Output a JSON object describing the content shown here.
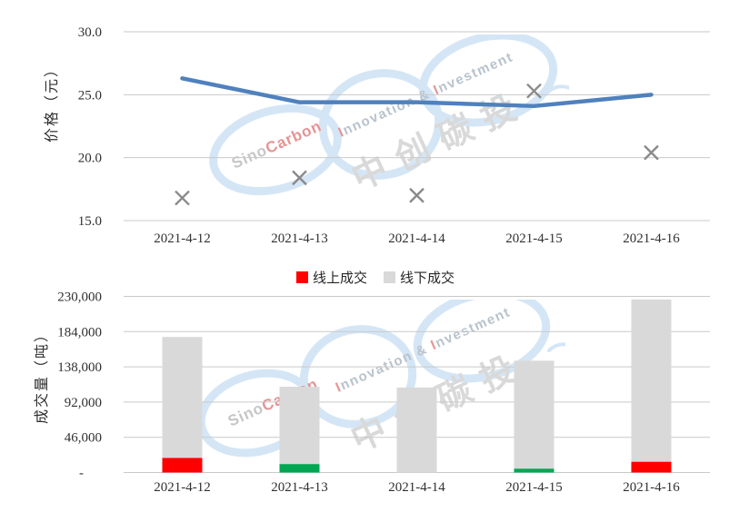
{
  "page": {
    "background": "#ffffff"
  },
  "legend": {
    "items": [
      {
        "label": "线上成交",
        "color": "#ff0000"
      },
      {
        "label": "线下成交",
        "color": "#d9d9d9"
      }
    ]
  },
  "watermark": {
    "sino": "Sino",
    "carbon": "Carbon",
    "tag_i1": "I",
    "tag_rest1": "nnovation ",
    "tag_amp": "& ",
    "tag_i2": "I",
    "tag_rest2": "nvestment",
    "cjk": "中创碳投",
    "ring_color": "#d4e6f6",
    "gray": "#c6c6c6",
    "gray2": "#b9c3cc",
    "red": "#e59494",
    "cjk_color": "#d9d9d9"
  },
  "chart_data": [
    {
      "type": "line",
      "title": "",
      "xlabel": "",
      "ylabel": "价格（元）",
      "grid": true,
      "categories": [
        "2021-4-12",
        "2021-4-13",
        "2021-4-14",
        "2021-4-15",
        "2021-4-16"
      ],
      "ylim": [
        15.0,
        30.0
      ],
      "yticks": [
        15.0,
        20.0,
        25.0,
        30.0
      ],
      "ytick_labels": [
        "15.0",
        "20.0",
        "25.0",
        "30.0"
      ],
      "series": [
        {
          "name": "price-line",
          "type": "line",
          "color": "#4f81bd",
          "stroke_width": 4.5,
          "values": [
            26.3,
            24.4,
            24.4,
            24.1,
            25.0
          ]
        },
        {
          "name": "price-x-markers",
          "type": "scatter",
          "marker": "x",
          "color": "#8a8a8a",
          "values": [
            16.8,
            18.4,
            17.0,
            25.3,
            20.4
          ]
        }
      ]
    },
    {
      "type": "bar",
      "stacked": true,
      "title": "",
      "xlabel": "",
      "ylabel": "成交量（吨）",
      "grid": true,
      "legend_position": "top",
      "categories": [
        "2021-4-12",
        "2021-4-13",
        "2021-4-14",
        "2021-4-15",
        "2021-4-16"
      ],
      "ylim": [
        0,
        230000
      ],
      "yticks": [
        0,
        46000,
        92000,
        138000,
        184000,
        230000
      ],
      "ytick_labels": [
        "-",
        "46,000",
        "92,000",
        "138,000",
        "184,000",
        "230,000"
      ],
      "series": [
        {
          "name": "线上成交",
          "values": [
            19000,
            11000,
            0,
            5000,
            14000
          ],
          "colors": [
            "#ff0000",
            "#00a651",
            "#00a651",
            "#00a651",
            "#ff0000"
          ],
          "legend_color": "#ff0000"
        },
        {
          "name": "线下成交",
          "values": [
            158000,
            101000,
            111000,
            141000,
            212000
          ],
          "color": "#d9d9d9"
        }
      ],
      "totals": [
        177000,
        112000,
        111000,
        146000,
        226000
      ]
    }
  ]
}
